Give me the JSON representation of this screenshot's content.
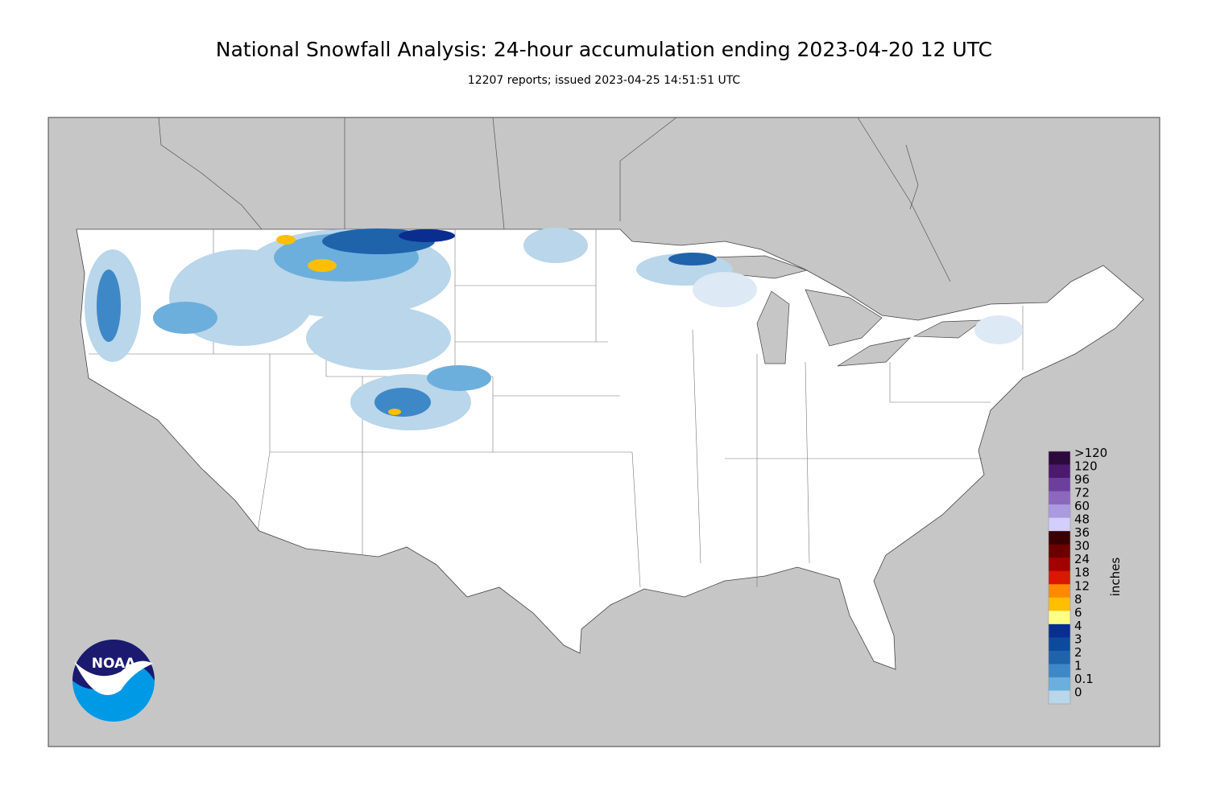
{
  "header": {
    "title": "National Snowfall Analysis: 24-hour accumulation ending 2023-04-20 12 UTC",
    "subtitle": "12207 reports; issued 2023-04-25 14:51:51 UTC"
  },
  "legend": {
    "unit": "inches",
    "entries": [
      {
        "label": ">120",
        "color": "#2c0a3c"
      },
      {
        "label": "120",
        "color": "#4b1a6e"
      },
      {
        "label": "96",
        "color": "#6c3f9c"
      },
      {
        "label": "72",
        "color": "#8c68bc"
      },
      {
        "label": "60",
        "color": "#ab9ae0"
      },
      {
        "label": "48",
        "color": "#d2cffd"
      },
      {
        "label": "36",
        "color": "#3a0000"
      },
      {
        "label": "30",
        "color": "#6a0000"
      },
      {
        "label": "24",
        "color": "#a30000"
      },
      {
        "label": "18",
        "color": "#d91800"
      },
      {
        "label": "12",
        "color": "#ff8a00"
      },
      {
        "label": "8",
        "color": "#ffbe00"
      },
      {
        "label": "6",
        "color": "#ffff88"
      },
      {
        "label": "4",
        "color": "#0a2e8f"
      },
      {
        "label": "3",
        "color": "#0c4a9c"
      },
      {
        "label": "2",
        "color": "#1f63ab"
      },
      {
        "label": "1",
        "color": "#3e88c8"
      },
      {
        "label": "0.1",
        "color": "#6dafdc"
      },
      {
        "label": "0",
        "color": "#b9d6ea"
      }
    ]
  },
  "logo": {
    "text": "NOAA"
  }
}
